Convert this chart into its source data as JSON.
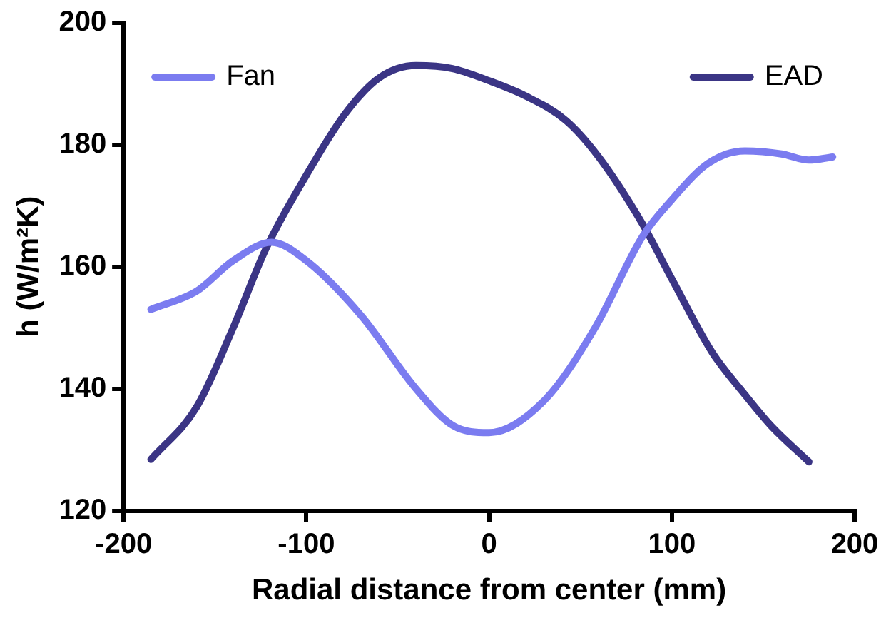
{
  "chart_data": {
    "type": "line",
    "xlabel": "Radial distance from center (mm)",
    "ylabel": "h (W/m²K)",
    "xlim": [
      -200,
      200
    ],
    "xticks": [
      -200,
      -100,
      0,
      100,
      200
    ],
    "ylim": [
      120,
      200
    ],
    "yticks": [
      120,
      140,
      160,
      180,
      200
    ],
    "grid": false,
    "legend": "top",
    "marker": "none",
    "line_style": "solid",
    "series": [
      {
        "name": "Fan",
        "color": "#7b7cf0",
        "x": [
          -185,
          -160,
          -140,
          -119,
          -100,
          -70,
          -40,
          -20,
          0,
          30,
          58,
          84,
          100,
          120,
          140,
          160,
          175,
          188
        ],
        "values": [
          153,
          156,
          161,
          164,
          161,
          152,
          140,
          134,
          132.8,
          138,
          150,
          165,
          171,
          177,
          179,
          178.5,
          177.5,
          178
        ]
      },
      {
        "name": "EAD",
        "color": "#3b3585",
        "x": [
          -185,
          -160,
          -140,
          -122,
          -100,
          -79,
          -60,
          -40,
          -20,
          0,
          20,
          42,
          60,
          84,
          100,
          122,
          140,
          154,
          175
        ],
        "values": [
          128.4,
          137,
          150,
          163,
          175,
          185,
          191,
          193,
          192.5,
          190.5,
          188,
          184,
          178,
          167,
          158,
          146,
          139,
          134,
          128
        ]
      }
    ]
  }
}
